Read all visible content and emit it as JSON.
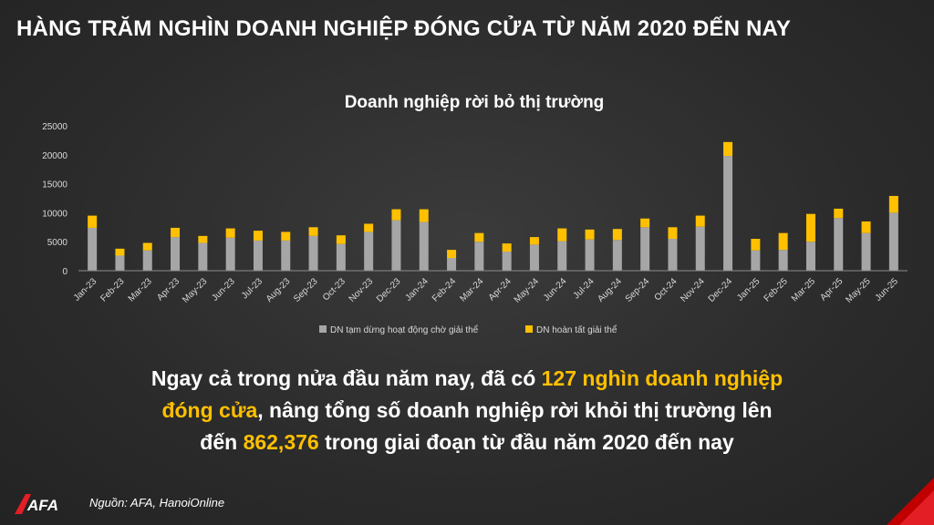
{
  "headline": "HÀNG TRĂM NGHÌN DOANH NGHIỆP ĐÓNG CỬA TỪ NĂM 2020 ĐẾN NAY",
  "summary": {
    "line1_a": "Ngay cả trong nửa đầu năm nay, đã có ",
    "line1_hl": "127 nghìn doanh nghiệp",
    "line2_hl": "đóng cửa",
    "line2_b": ", nâng tổng số doanh nghiệp rời khỏi thị trường lên",
    "line3_a": "đến ",
    "line3_hl": "862,376",
    "line3_b": " trong giai đoạn từ đầu năm 2020 đến nay"
  },
  "source": "Nguồn: AFA, HanoiOnline",
  "logo_text": "AFA",
  "colors": {
    "background": "#2b2b2b",
    "series_suspended": "#a6a6a6",
    "series_dissolved": "#ffc000",
    "highlight": "#ffc000"
  },
  "chart_data": {
    "type": "bar",
    "stacked": true,
    "title": "Doanh nghiệp rời bỏ thị trường",
    "ylim": [
      0,
      25000
    ],
    "yticks": [
      0,
      5000,
      10000,
      15000,
      20000,
      25000
    ],
    "grid": false,
    "legend_position": "bottom",
    "categories": [
      "Jan-23",
      "Feb-23",
      "Mar-23",
      "Apr-23",
      "May-23",
      "Jun-23",
      "Jul-23",
      "Aug-23",
      "Sep-23",
      "Oct-23",
      "Nov-23",
      "Dec-23",
      "Jan-24",
      "Feb-24",
      "Mar-24",
      "Apr-24",
      "May-24",
      "Jun-24",
      "Jul-24",
      "Aug-24",
      "Sep-24",
      "Oct-24",
      "Nov-24",
      "Dec-24",
      "Jan-25",
      "Feb-25",
      "Mar-25",
      "Apr-25",
      "May-25",
      "Jun-25"
    ],
    "series": [
      {
        "name": "DN tạm dừng hoạt động chờ giải thể",
        "color": "#a6a6a6",
        "values": [
          7400,
          2600,
          3500,
          5800,
          4800,
          5700,
          5200,
          5200,
          6000,
          4600,
          6700,
          8700,
          8400,
          2200,
          5000,
          3300,
          4500,
          5100,
          5400,
          5300,
          7500,
          5500,
          7600,
          19800,
          3500,
          3600,
          5000,
          9100,
          6500,
          10000
        ]
      },
      {
        "name": "DN hoàn tất giải thể",
        "color": "#ffc000",
        "values": [
          2100,
          1200,
          1300,
          1600,
          1200,
          1600,
          1700,
          1500,
          1500,
          1500,
          1400,
          1900,
          2200,
          1400,
          1500,
          1400,
          1300,
          2200,
          1700,
          1900,
          1500,
          2000,
          1900,
          2400,
          2000,
          2900,
          4800,
          1600,
          2000,
          2900
        ]
      }
    ]
  }
}
